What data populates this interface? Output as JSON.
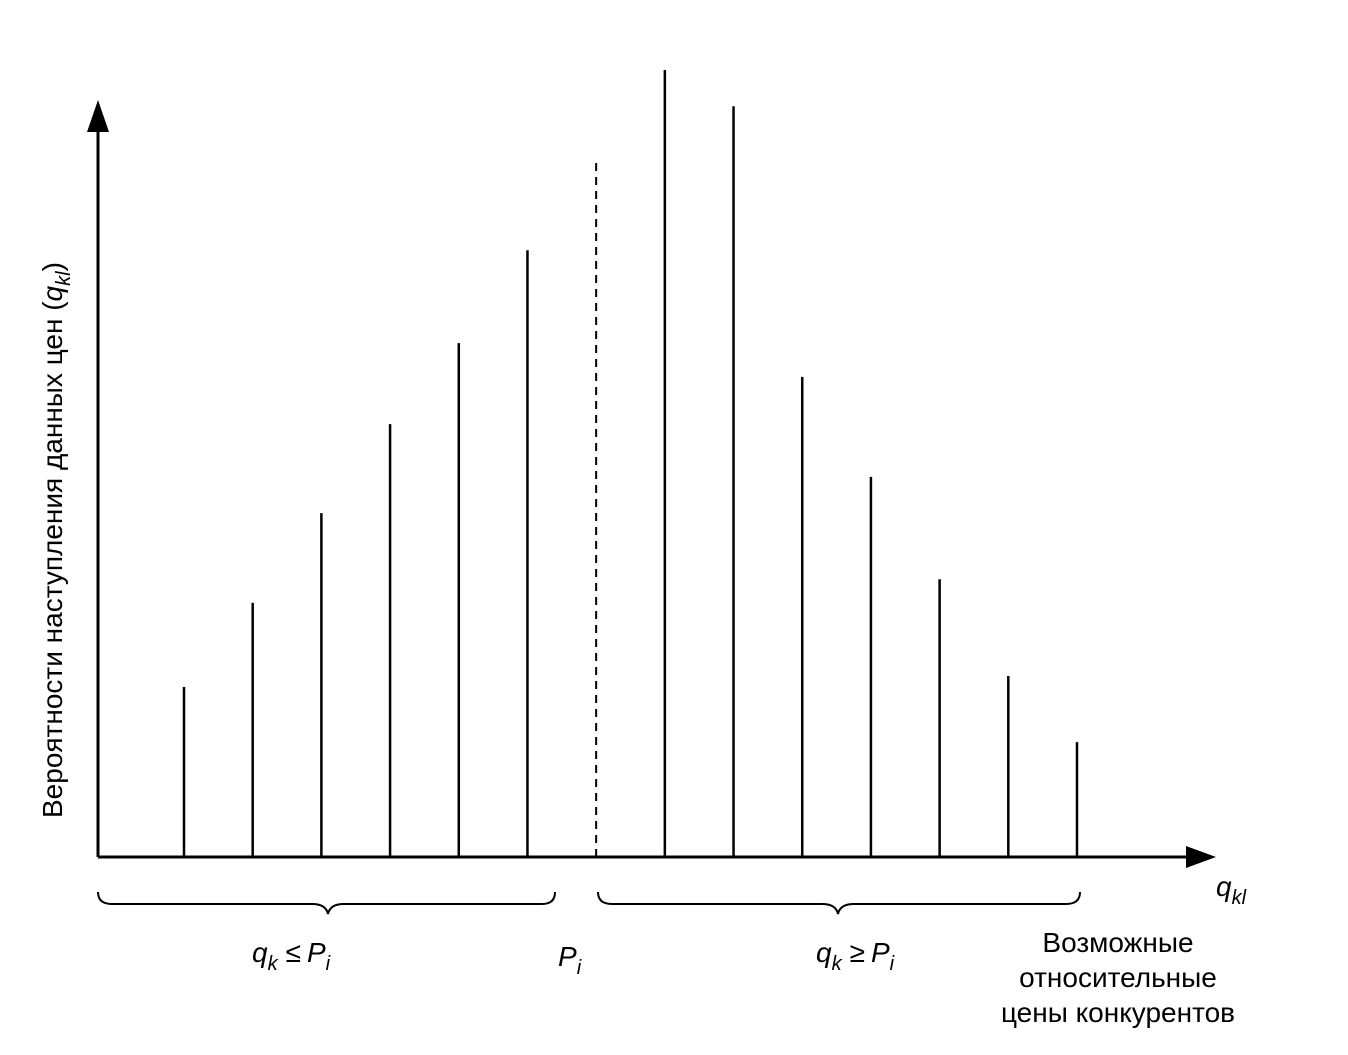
{
  "chart_data": {
    "type": "stem",
    "color": "#000000",
    "categories": [
      null,
      null,
      null,
      null,
      null,
      null,
      null,
      null,
      null,
      null,
      null,
      null,
      null
    ],
    "values": [
      21.6,
      32.3,
      43.7,
      55.0,
      65.3,
      77.1,
      100,
      95.4,
      61.0,
      48.3,
      35.3,
      23.0,
      14.6
    ],
    "ylim": [
      0,
      100
    ],
    "marker_line": {
      "value": 88.3,
      "style": "dashed",
      "label": {
        "var": "P",
        "sub": "i"
      }
    },
    "y_label": {
      "text": "Вероятности наступления данных цен (",
      "var": "q",
      "sub": "kl",
      "close": ")"
    },
    "x_label": {
      "var": "q",
      "sub": "kl"
    },
    "left_group_label": {
      "var": "q",
      "sub": "k",
      "op": "≤",
      "var2": "P",
      "sub2": "i"
    },
    "right_group_label": {
      "var": "q",
      "sub": "k",
      "op": "≥",
      "var2": "P",
      "sub2": "i"
    },
    "note": [
      "Возможные",
      "относительные",
      "цены конкурентов"
    ]
  }
}
